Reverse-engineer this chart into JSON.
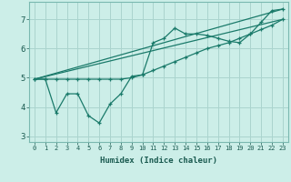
{
  "xlabel": "Humidex (Indice chaleur)",
  "bg_color": "#cceee8",
  "grid_color": "#aad4ce",
  "line_color": "#1a7a6a",
  "xlim": [
    -0.5,
    23.5
  ],
  "ylim": [
    2.8,
    7.6
  ],
  "xticks": [
    0,
    1,
    2,
    3,
    4,
    5,
    6,
    7,
    8,
    9,
    10,
    11,
    12,
    13,
    14,
    15,
    16,
    17,
    18,
    19,
    20,
    21,
    22,
    23
  ],
  "yticks": [
    3,
    4,
    5,
    6,
    7
  ],
  "line1_x": [
    0,
    1,
    2,
    3,
    4,
    5,
    6,
    7,
    8,
    9,
    10,
    11,
    12,
    13,
    14,
    15,
    16,
    17,
    18,
    19,
    20,
    21,
    22,
    23
  ],
  "line1_y": [
    4.95,
    4.95,
    3.8,
    4.45,
    4.45,
    3.7,
    3.45,
    4.1,
    4.45,
    5.05,
    5.1,
    6.2,
    6.35,
    6.7,
    6.5,
    6.5,
    6.45,
    6.35,
    6.25,
    6.2,
    6.5,
    6.9,
    7.3,
    7.35
  ],
  "line2_x": [
    0,
    1,
    2,
    3,
    4,
    5,
    6,
    7,
    8,
    9,
    10,
    11,
    12,
    13,
    14,
    15,
    16,
    17,
    18,
    19,
    20,
    21,
    22,
    23
  ],
  "line2_y": [
    4.95,
    4.95,
    4.95,
    4.95,
    4.95,
    4.95,
    4.95,
    4.95,
    4.95,
    5.0,
    5.1,
    5.25,
    5.4,
    5.55,
    5.7,
    5.85,
    6.0,
    6.1,
    6.2,
    6.35,
    6.5,
    6.65,
    6.8,
    7.0
  ],
  "line3_x": [
    0,
    23
  ],
  "line3_y": [
    4.95,
    7.35
  ],
  "line4_x": [
    0,
    23
  ],
  "line4_y": [
    4.95,
    7.0
  ],
  "xtick_fontsize": 5.0,
  "ytick_fontsize": 6.5,
  "xlabel_fontsize": 6.5
}
